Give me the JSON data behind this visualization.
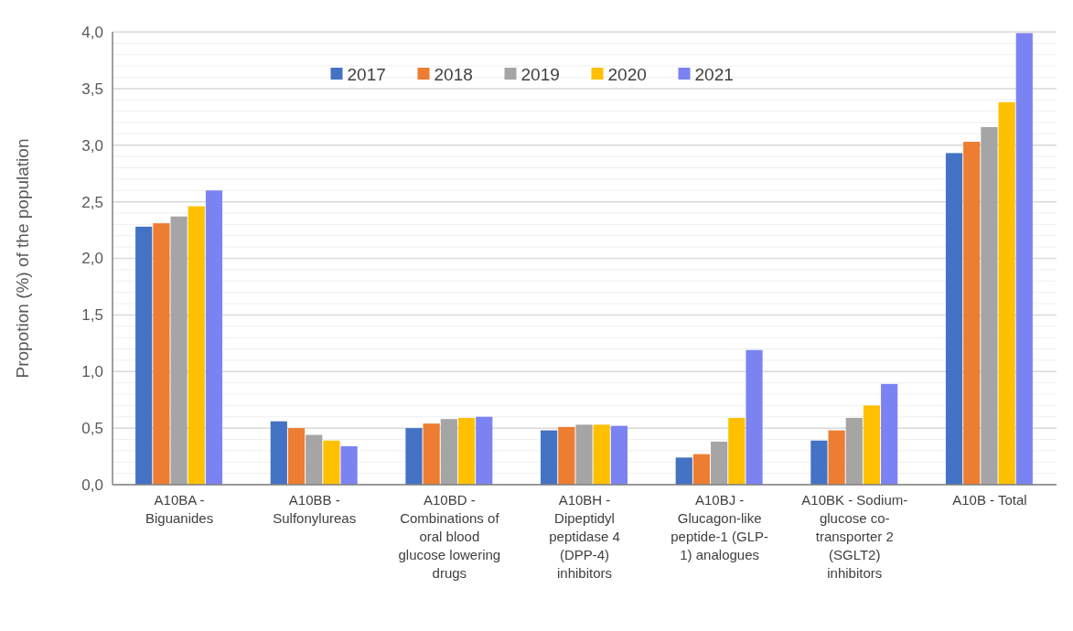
{
  "chart_data": {
    "type": "bar",
    "ylabel": "Propotion (%) of the population",
    "categories": [
      "A10BA - Biguanides",
      "A10BB - Sulfonylureas",
      "A10BD - Combinations of oral blood glucose lowering drugs",
      "A10BH - Dipeptidyl peptidase 4 (DPP-4) inhibitors",
      "A10BJ - Glucagon-like peptide-1 (GLP-1) analogues",
      "A10BK - Sodium-glucose co-transporter 2 (SGLT2) inhibitors",
      "A10B - Total"
    ],
    "series": [
      {
        "name": "2017",
        "color": "#4472c4",
        "values": [
          2.28,
          0.56,
          0.5,
          0.48,
          0.24,
          0.39,
          2.93
        ]
      },
      {
        "name": "2018",
        "color": "#ed7d31",
        "values": [
          2.31,
          0.5,
          0.54,
          0.51,
          0.27,
          0.48,
          3.03
        ]
      },
      {
        "name": "2019",
        "color": "#a5a5a5",
        "values": [
          2.37,
          0.44,
          0.58,
          0.53,
          0.38,
          0.59,
          3.16
        ]
      },
      {
        "name": "2020",
        "color": "#ffc000",
        "values": [
          2.46,
          0.39,
          0.59,
          0.53,
          0.59,
          0.7,
          3.38
        ]
      },
      {
        "name": "2021",
        "color": "#7b83f2",
        "values": [
          2.6,
          0.34,
          0.6,
          0.52,
          1.19,
          0.89,
          3.99
        ]
      }
    ],
    "ylim": [
      0,
      4
    ],
    "yticks": [
      {
        "value": 0,
        "label": "0,0"
      },
      {
        "value": 0.1,
        "label": null
      },
      {
        "value": 0.2,
        "label": null
      },
      {
        "value": 0.3,
        "label": null
      },
      {
        "value": 0.4,
        "label": null
      },
      {
        "value": 0.5,
        "label": "0,5"
      },
      {
        "value": 0.6,
        "label": null
      },
      {
        "value": 0.7,
        "label": null
      },
      {
        "value": 0.8,
        "label": null
      },
      {
        "value": 0.9,
        "label": null
      },
      {
        "value": 1,
        "label": "1,0"
      },
      {
        "value": 1.1,
        "label": null
      },
      {
        "value": 1.2,
        "label": null
      },
      {
        "value": 1.3,
        "label": null
      },
      {
        "value": 1.4,
        "label": null
      },
      {
        "value": 1.5,
        "label": "1,5"
      },
      {
        "value": 1.6,
        "label": null
      },
      {
        "value": 1.7,
        "label": null
      },
      {
        "value": 1.8,
        "label": null
      },
      {
        "value": 1.9,
        "label": null
      },
      {
        "value": 2,
        "label": "2,0"
      },
      {
        "value": 2.1,
        "label": null
      },
      {
        "value": 2.2,
        "label": null
      },
      {
        "value": 2.3,
        "label": null
      },
      {
        "value": 2.4,
        "label": null
      },
      {
        "value": 2.5,
        "label": "2,5"
      },
      {
        "value": 2.6,
        "label": null
      },
      {
        "value": 2.7,
        "label": null
      },
      {
        "value": 2.8,
        "label": null
      },
      {
        "value": 2.9,
        "label": null
      },
      {
        "value": 3,
        "label": "3,0"
      },
      {
        "value": 3.1,
        "label": null
      },
      {
        "value": 3.2,
        "label": null
      },
      {
        "value": 3.3,
        "label": null
      },
      {
        "value": 3.4,
        "label": null
      },
      {
        "value": 3.5,
        "label": "3,5"
      },
      {
        "value": 3.6,
        "label": null
      },
      {
        "value": 3.7,
        "label": null
      },
      {
        "value": 3.8,
        "label": null
      },
      {
        "value": 3.9,
        "label": null
      },
      {
        "value": 4,
        "label": "4,0"
      }
    ],
    "grid": true,
    "legend": "top"
  }
}
